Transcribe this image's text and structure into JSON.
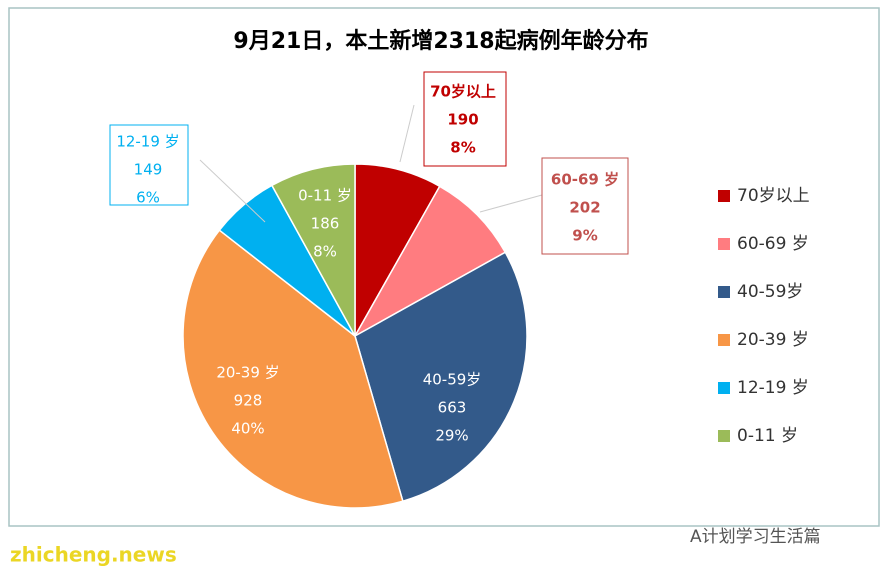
{
  "chart_data": {
    "type": "pie",
    "title": "9月21日，本土新增2318起病例年龄分布",
    "categories": [
      "70岁以上",
      "60-69 岁",
      "40-59岁",
      "20-39 岁",
      "12-19 岁",
      "0-11 岁"
    ],
    "values": [
      190,
      202,
      663,
      928,
      149,
      186
    ],
    "percent_labels": [
      "8%",
      "9%",
      "29%",
      "40%",
      "6%",
      "8%"
    ],
    "colors": [
      "#c00000",
      "#ff7c80",
      "#335a8a",
      "#f79646",
      "#00b0f0",
      "#9bbb59"
    ],
    "legend": "right"
  },
  "watermarks": [
    "zhicheng.news",
    "A计划学习生活篇"
  ]
}
